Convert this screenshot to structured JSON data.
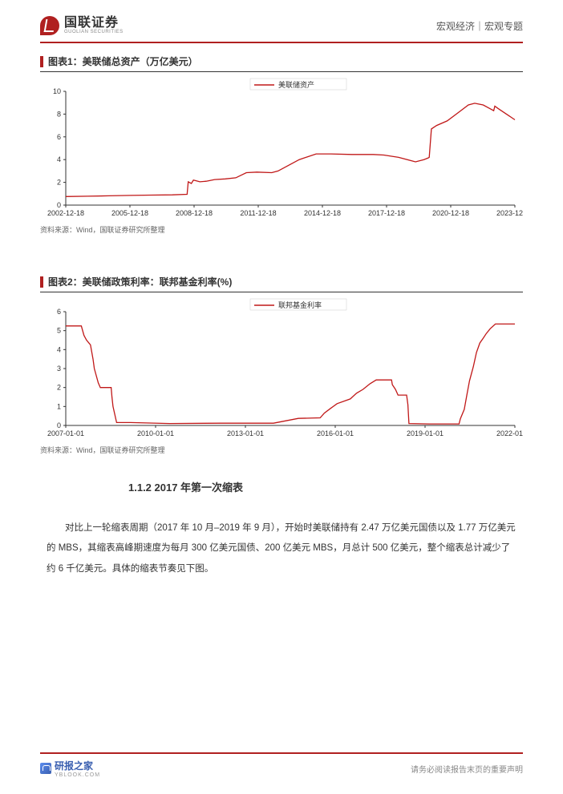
{
  "header": {
    "logo_cn": "国联证券",
    "logo_en": "GUOLIAN SECURITIES",
    "category": "宏观经济｜宏观专题"
  },
  "chart1": {
    "title": "图表1：美联储总资产（万亿美元）",
    "legend": "美联储资产",
    "type": "line",
    "line_color": "#c01818",
    "axis_color": "#333333",
    "grid_color": "#e8e8e8",
    "background_color": "#ffffff",
    "ylim": [
      0,
      10
    ],
    "ytick_step": 2,
    "yticks": [
      0,
      2,
      4,
      6,
      8,
      10
    ],
    "xticks": [
      "2002-12-18",
      "2005-12-18",
      "2008-12-18",
      "2011-12-18",
      "2014-12-18",
      "2017-12-18",
      "2020-12-18",
      "2023-12-18"
    ],
    "xrange": [
      2002.96,
      2024.2
    ],
    "series": [
      [
        2002.96,
        0.75
      ],
      [
        2004,
        0.78
      ],
      [
        2005,
        0.82
      ],
      [
        2006,
        0.85
      ],
      [
        2007,
        0.88
      ],
      [
        2008,
        0.9
      ],
      [
        2008.7,
        0.95
      ],
      [
        2008.75,
        2.05
      ],
      [
        2008.9,
        1.9
      ],
      [
        2009.0,
        2.2
      ],
      [
        2009.3,
        2.05
      ],
      [
        2009.6,
        2.1
      ],
      [
        2010.0,
        2.25
      ],
      [
        2010.5,
        2.3
      ],
      [
        2011.0,
        2.4
      ],
      [
        2011.5,
        2.85
      ],
      [
        2012.0,
        2.9
      ],
      [
        2012.7,
        2.85
      ],
      [
        2013.0,
        3.0
      ],
      [
        2013.5,
        3.5
      ],
      [
        2014.0,
        4.0
      ],
      [
        2014.8,
        4.5
      ],
      [
        2015.5,
        4.5
      ],
      [
        2016.5,
        4.45
      ],
      [
        2017.5,
        4.45
      ],
      [
        2018.0,
        4.4
      ],
      [
        2018.7,
        4.2
      ],
      [
        2019.5,
        3.8
      ],
      [
        2019.9,
        4.0
      ],
      [
        2020.1,
        4.15
      ],
      [
        2020.15,
        4.2
      ],
      [
        2020.25,
        6.7
      ],
      [
        2020.5,
        7.0
      ],
      [
        2021.0,
        7.4
      ],
      [
        2021.5,
        8.1
      ],
      [
        2022.0,
        8.8
      ],
      [
        2022.3,
        8.95
      ],
      [
        2022.7,
        8.8
      ],
      [
        2023.0,
        8.5
      ],
      [
        2023.2,
        8.3
      ],
      [
        2023.25,
        8.7
      ],
      [
        2023.4,
        8.5
      ],
      [
        2023.8,
        8.0
      ],
      [
        2024.2,
        7.5
      ]
    ],
    "source": "资料来源：Wind，国联证券研究所整理"
  },
  "chart2": {
    "title": "图表2：美联储政策利率：联邦基金利率(%)",
    "legend": "联邦基金利率",
    "type": "line",
    "line_color": "#c01818",
    "axis_color": "#333333",
    "grid_color": "#e8e8e8",
    "background_color": "#ffffff",
    "ylim": [
      0,
      6
    ],
    "ytick_step": 1,
    "yticks": [
      0,
      1,
      2,
      3,
      4,
      5,
      6
    ],
    "xticks": [
      "2007-01-01",
      "2010-01-01",
      "2013-01-01",
      "2016-01-01",
      "2019-01-01",
      "2022-01-01"
    ],
    "xrange": [
      2007.0,
      2024.3
    ],
    "series": [
      [
        2007.0,
        5.25
      ],
      [
        2007.6,
        5.25
      ],
      [
        2007.7,
        4.75
      ],
      [
        2007.8,
        4.5
      ],
      [
        2007.95,
        4.25
      ],
      [
        2008.05,
        3.5
      ],
      [
        2008.1,
        3.0
      ],
      [
        2008.25,
        2.25
      ],
      [
        2008.33,
        2.0
      ],
      [
        2008.75,
        2.0
      ],
      [
        2008.78,
        1.5
      ],
      [
        2008.82,
        1.0
      ],
      [
        2008.96,
        0.15
      ],
      [
        2009.5,
        0.15
      ],
      [
        2011.0,
        0.1
      ],
      [
        2013.0,
        0.12
      ],
      [
        2015.0,
        0.12
      ],
      [
        2015.96,
        0.37
      ],
      [
        2016.8,
        0.4
      ],
      [
        2016.96,
        0.65
      ],
      [
        2017.2,
        0.9
      ],
      [
        2017.45,
        1.15
      ],
      [
        2017.96,
        1.4
      ],
      [
        2018.2,
        1.7
      ],
      [
        2018.45,
        1.9
      ],
      [
        2018.72,
        2.2
      ],
      [
        2018.96,
        2.4
      ],
      [
        2019.55,
        2.4
      ],
      [
        2019.58,
        2.15
      ],
      [
        2019.7,
        1.9
      ],
      [
        2019.8,
        1.6
      ],
      [
        2020.13,
        1.6
      ],
      [
        2020.18,
        1.1
      ],
      [
        2020.22,
        0.1
      ],
      [
        2021.0,
        0.08
      ],
      [
        2022.15,
        0.08
      ],
      [
        2022.2,
        0.35
      ],
      [
        2022.35,
        0.85
      ],
      [
        2022.45,
        1.6
      ],
      [
        2022.55,
        2.35
      ],
      [
        2022.7,
        3.1
      ],
      [
        2022.82,
        3.85
      ],
      [
        2022.95,
        4.35
      ],
      [
        2023.08,
        4.6
      ],
      [
        2023.2,
        4.85
      ],
      [
        2023.35,
        5.1
      ],
      [
        2023.55,
        5.35
      ],
      [
        2024.3,
        5.35
      ]
    ],
    "source": "资料来源：Wind，国联证券研究所整理"
  },
  "section": {
    "heading": "1.1.2 2017 年第一次缩表",
    "paragraph": "对比上一轮缩表周期（2017 年 10 月–2019 年 9 月），开始时美联储持有 2.47 万亿美元国债以及 1.77 万亿美元的 MBS，其缩表高峰期速度为每月 300 亿美元国债、200 亿美元 MBS，月总计 500 亿美元，整个缩表总计减少了约 6 千亿美元。具体的缩表节奏见下图。"
  },
  "footer": {
    "brand": "研报之家",
    "brand_sub": "YBLOOK.COM",
    "disclaimer": "请务必阅读报告末页的重要声明"
  }
}
